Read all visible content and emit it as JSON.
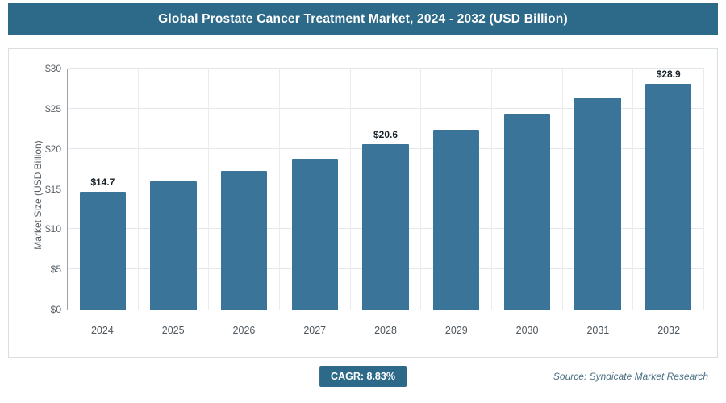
{
  "header": {
    "title": "Global Prostate Cancer Treatment Market, 2024 - 2032 (USD Billion)"
  },
  "chart_data": {
    "type": "bar",
    "title": "Global Prostate Cancer Treatment Market, 2024 - 2032 (USD Billion)",
    "categories": [
      "2024",
      "2025",
      "2026",
      "2027",
      "2028",
      "2029",
      "2030",
      "2031",
      "2032"
    ],
    "values": [
      14.7,
      16.0,
      17.3,
      18.8,
      20.6,
      22.4,
      24.3,
      26.4,
      28.9
    ],
    "data_labels": [
      "$14.7",
      "",
      "",
      "",
      "$20.6",
      "",
      "",
      "",
      "$28.9"
    ],
    "xlabel": "",
    "ylabel": "Market Size (USD Billion)",
    "ylim": [
      0,
      30
    ],
    "ytick_step": 5,
    "ytick_labels": [
      "$0",
      "$5",
      "$10",
      "$15",
      "$20",
      "$25",
      "$30"
    ],
    "grid": true,
    "legend": "none",
    "bar_color": "#3a7499"
  },
  "footer": {
    "cagr_label": "CAGR: 8.83%",
    "source": "Source: Syndicate Market Research"
  },
  "colors": {
    "header_bg": "#2d6a89",
    "badge_bg": "#2d6a89",
    "bar": "#3a7499"
  }
}
